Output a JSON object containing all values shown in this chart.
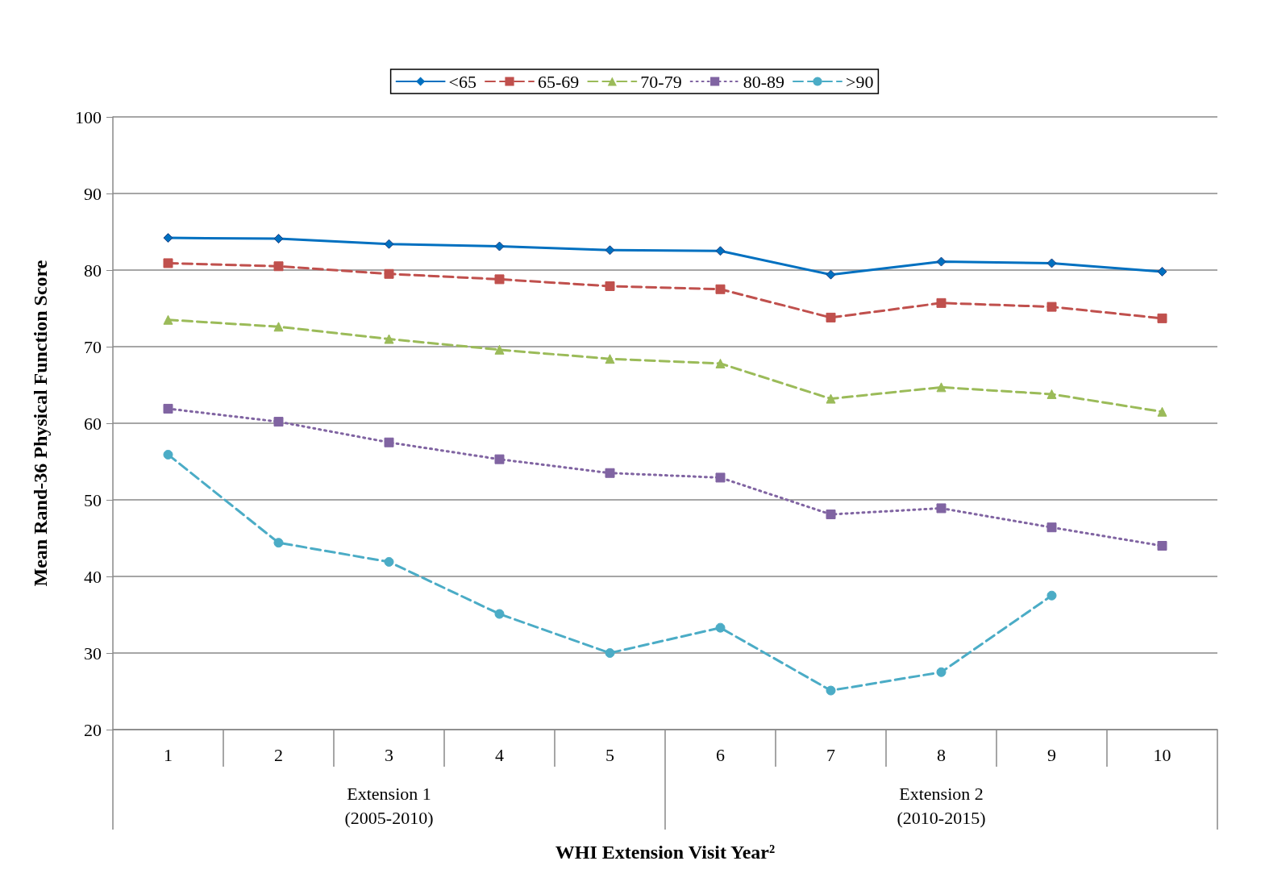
{
  "chart_data": {
    "type": "line",
    "xlabel": "WHI Extension Visit Year²",
    "ylabel": "Mean Rand-36 Physical Function Score",
    "categories": [
      "1",
      "2",
      "3",
      "4",
      "5",
      "6",
      "7",
      "8",
      "9",
      "10"
    ],
    "annotations": [
      "Extension 1\n(2005-2010)",
      "Extension 2\n(2010-2015)"
    ],
    "ylim": [
      20,
      100
    ],
    "yticks": [
      20,
      30,
      40,
      50,
      60,
      70,
      80,
      90,
      100
    ],
    "grid": "y",
    "legend": "top",
    "series": [
      {
        "name": "<65",
        "color": "#0070c0",
        "marker": "diamond",
        "line_style": "solid",
        "values": [
          84.2,
          84.1,
          83.4,
          83.1,
          82.6,
          82.5,
          79.4,
          81.1,
          80.9,
          79.8
        ]
      },
      {
        "name": "65-69",
        "color": "#c0504d",
        "marker": "square",
        "line_style": "dashed",
        "values": [
          80.9,
          80.5,
          79.5,
          78.8,
          77.9,
          77.5,
          73.8,
          75.7,
          75.2,
          73.7
        ]
      },
      {
        "name": "70-79",
        "color": "#9bbb59",
        "marker": "triangle",
        "line_style": "dashed",
        "values": [
          73.5,
          72.6,
          71.0,
          69.6,
          68.4,
          67.8,
          63.2,
          64.7,
          63.8,
          61.5
        ]
      },
      {
        "name": "80-89",
        "color": "#8064a2",
        "marker": "square",
        "line_style": "dotted",
        "values": [
          61.9,
          60.2,
          57.5,
          55.3,
          53.5,
          52.9,
          48.1,
          48.9,
          46.4,
          44.0
        ]
      },
      {
        "name": ">90",
        "color": "#4bacc6",
        "marker": "circle",
        "line_style": "dashed",
        "values": [
          55.9,
          44.4,
          41.9,
          35.1,
          30.0,
          33.3,
          25.1,
          27.5,
          37.5,
          null
        ]
      }
    ]
  }
}
